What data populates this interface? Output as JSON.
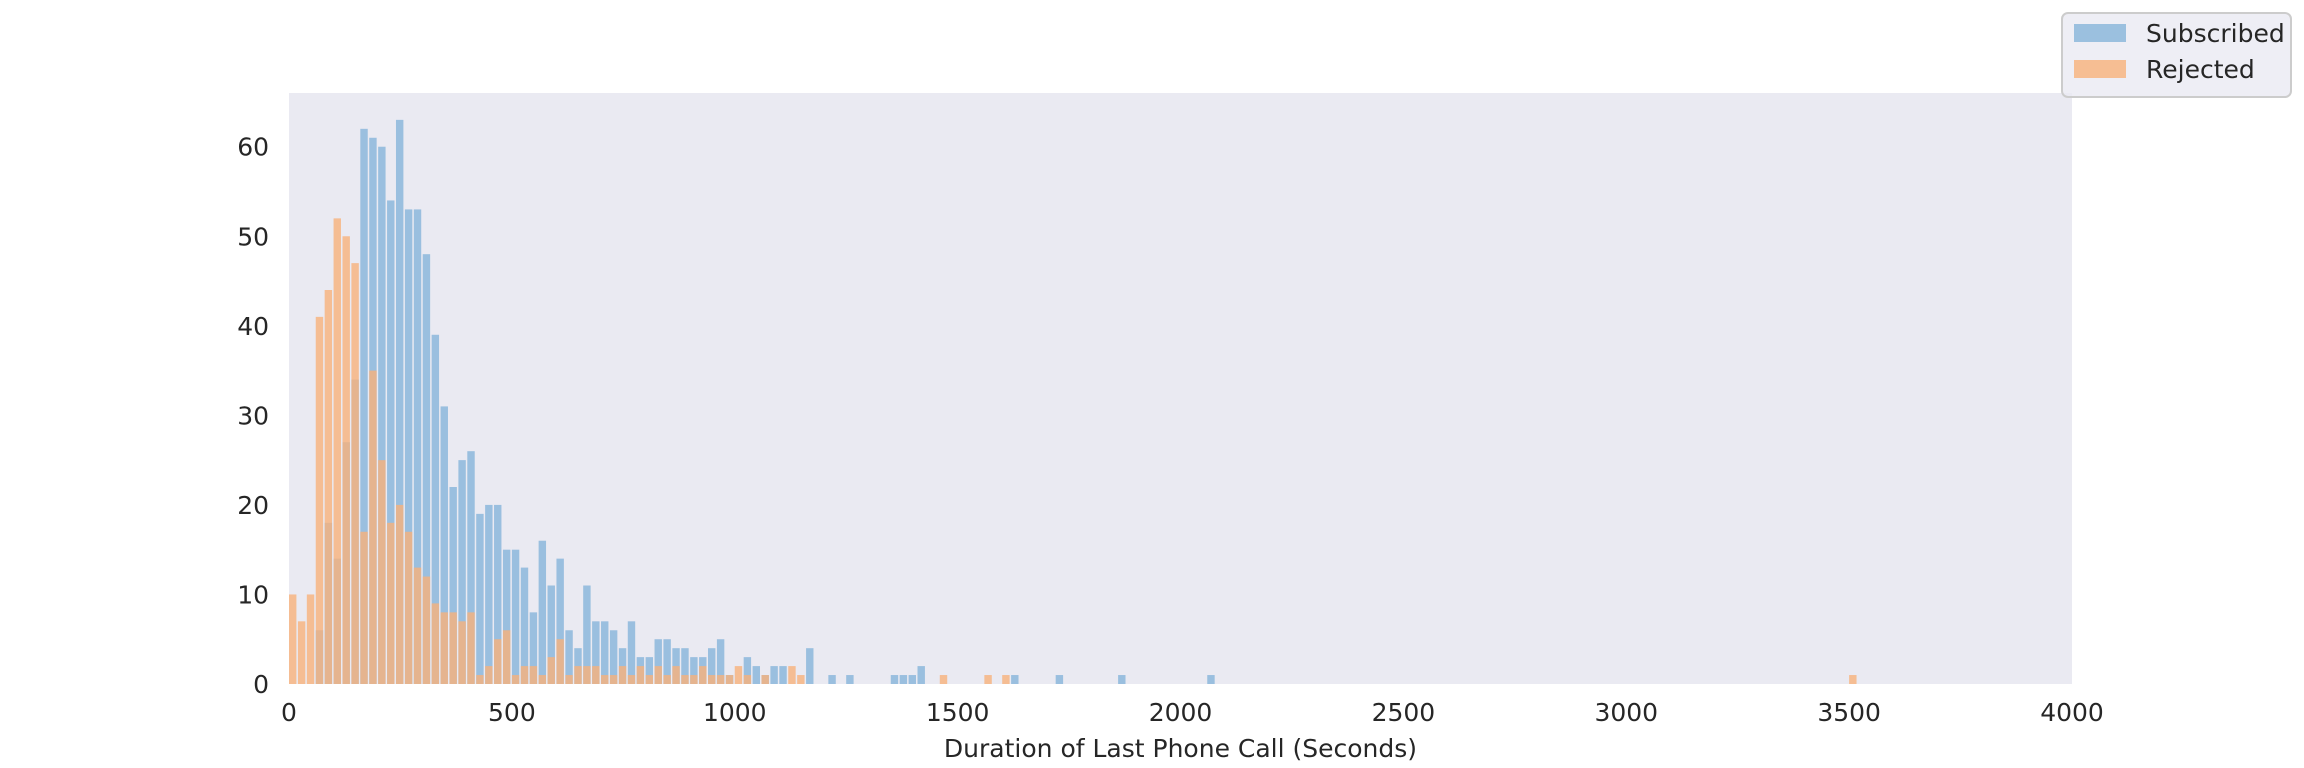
{
  "chart_data": {
    "type": "histogram",
    "xlabel": "Duration of Last Phone Call (Seconds)",
    "ylabel": "",
    "xlim": [
      0,
      4000
    ],
    "ylim": [
      0,
      66
    ],
    "xticks": [
      0,
      500,
      1000,
      1500,
      2000,
      2500,
      3000,
      3500,
      4000
    ],
    "yticks": [
      0,
      10,
      20,
      30,
      40,
      50,
      60
    ],
    "grid": false,
    "legend_position": "top-right",
    "series": [
      {
        "name": "Subscribed",
        "color": "#86b4da",
        "opacity": 0.8,
        "bins": [
          [
            70,
            6
          ],
          [
            90,
            18
          ],
          [
            110,
            14
          ],
          [
            130,
            27
          ],
          [
            150,
            34
          ],
          [
            170,
            62
          ],
          [
            190,
            61
          ],
          [
            210,
            60
          ],
          [
            230,
            54
          ],
          [
            250,
            63
          ],
          [
            270,
            53
          ],
          [
            290,
            53
          ],
          [
            310,
            48
          ],
          [
            330,
            39
          ],
          [
            350,
            31
          ],
          [
            370,
            22
          ],
          [
            390,
            25
          ],
          [
            410,
            26
          ],
          [
            430,
            19
          ],
          [
            450,
            20
          ],
          [
            470,
            20
          ],
          [
            490,
            15
          ],
          [
            510,
            15
          ],
          [
            530,
            13
          ],
          [
            550,
            8
          ],
          [
            570,
            16
          ],
          [
            590,
            11
          ],
          [
            610,
            14
          ],
          [
            630,
            6
          ],
          [
            650,
            4
          ],
          [
            670,
            11
          ],
          [
            690,
            7
          ],
          [
            710,
            7
          ],
          [
            730,
            6
          ],
          [
            750,
            4
          ],
          [
            770,
            7
          ],
          [
            790,
            3
          ],
          [
            810,
            3
          ],
          [
            830,
            5
          ],
          [
            850,
            5
          ],
          [
            870,
            4
          ],
          [
            890,
            4
          ],
          [
            910,
            3
          ],
          [
            930,
            3
          ],
          [
            950,
            4
          ],
          [
            970,
            5
          ],
          [
            990,
            1
          ],
          [
            1030,
            3
          ],
          [
            1050,
            2
          ],
          [
            1070,
            1
          ],
          [
            1090,
            2
          ],
          [
            1110,
            2
          ],
          [
            1170,
            4
          ],
          [
            1220,
            1
          ],
          [
            1260,
            1
          ],
          [
            1360,
            1
          ],
          [
            1380,
            1
          ],
          [
            1400,
            1
          ],
          [
            1420,
            2
          ],
          [
            1630,
            1
          ],
          [
            1730,
            1
          ],
          [
            1870,
            1
          ],
          [
            2070,
            1
          ]
        ]
      },
      {
        "name": "Rejected",
        "color": "#f7b27a",
        "opacity": 0.8,
        "bins": [
          [
            10,
            10
          ],
          [
            30,
            7
          ],
          [
            50,
            10
          ],
          [
            70,
            41
          ],
          [
            90,
            44
          ],
          [
            110,
            52
          ],
          [
            130,
            50
          ],
          [
            150,
            47
          ],
          [
            170,
            17
          ],
          [
            190,
            35
          ],
          [
            210,
            25
          ],
          [
            230,
            18
          ],
          [
            250,
            20
          ],
          [
            270,
            17
          ],
          [
            290,
            13
          ],
          [
            310,
            12
          ],
          [
            330,
            9
          ],
          [
            350,
            8
          ],
          [
            370,
            8
          ],
          [
            390,
            7
          ],
          [
            410,
            8
          ],
          [
            430,
            1
          ],
          [
            450,
            2
          ],
          [
            470,
            5
          ],
          [
            490,
            6
          ],
          [
            510,
            1
          ],
          [
            530,
            2
          ],
          [
            550,
            2
          ],
          [
            570,
            1
          ],
          [
            590,
            3
          ],
          [
            610,
            5
          ],
          [
            630,
            1
          ],
          [
            650,
            2
          ],
          [
            670,
            2
          ],
          [
            690,
            2
          ],
          [
            710,
            1
          ],
          [
            730,
            1
          ],
          [
            750,
            2
          ],
          [
            770,
            1
          ],
          [
            790,
            2
          ],
          [
            810,
            1
          ],
          [
            830,
            2
          ],
          [
            850,
            1
          ],
          [
            870,
            2
          ],
          [
            890,
            1
          ],
          [
            910,
            1
          ],
          [
            930,
            2
          ],
          [
            950,
            1
          ],
          [
            970,
            1
          ],
          [
            990,
            1
          ],
          [
            1010,
            2
          ],
          [
            1030,
            1
          ],
          [
            1070,
            1
          ],
          [
            1130,
            2
          ],
          [
            1150,
            1
          ],
          [
            1470,
            1
          ],
          [
            1570,
            1
          ],
          [
            1610,
            1
          ],
          [
            3510,
            1
          ]
        ]
      }
    ]
  }
}
